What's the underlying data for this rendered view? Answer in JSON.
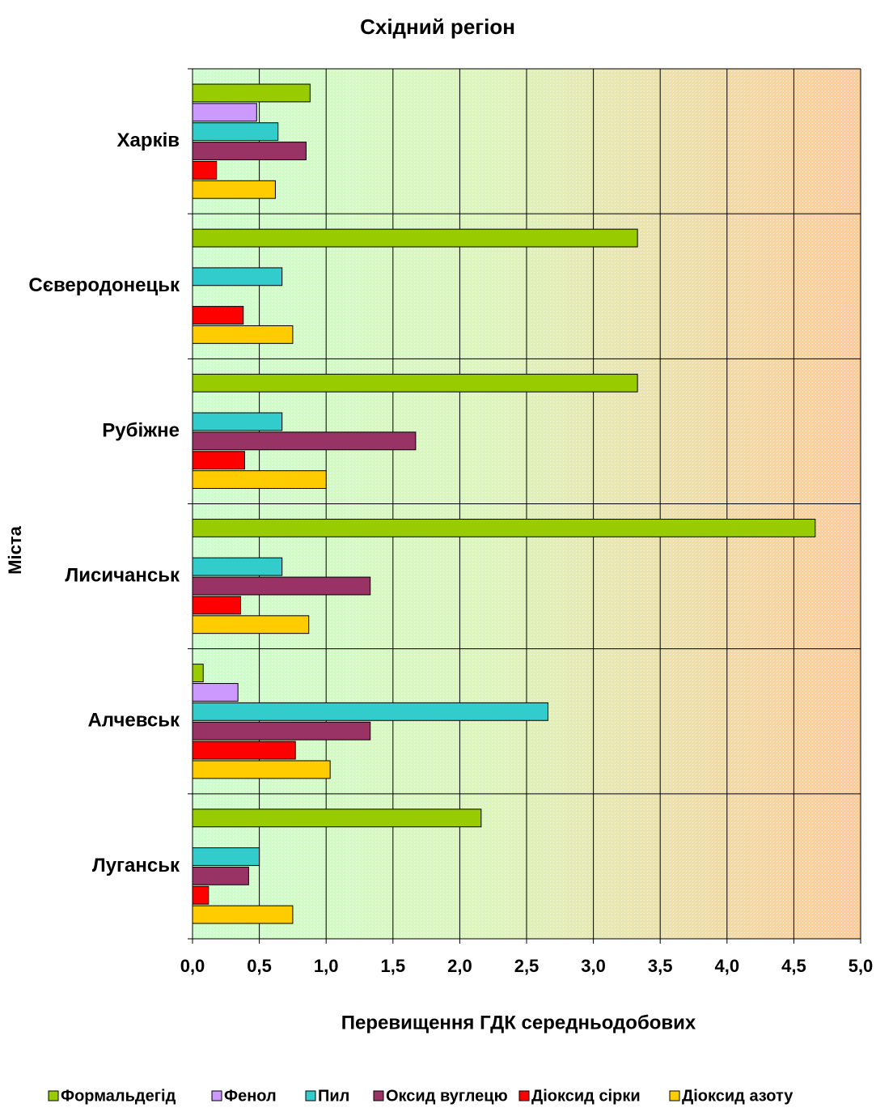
{
  "chart_data": {
    "type": "hbar",
    "title": "Східний регіон",
    "x_label": "Перевищення ГДК середньодобових",
    "y_label": "Міста",
    "categories": [
      "Харків",
      "Сєверодонецьк",
      "Рубіжне",
      "Лисичанськ",
      "Алчевськ",
      "Луганськ"
    ],
    "series": [
      {
        "name": "Формальдегід",
        "color": "#99cc00",
        "values": [
          0.88,
          3.33,
          3.33,
          4.66,
          0.08,
          2.16
        ]
      },
      {
        "name": "Фенол",
        "color": "#cc99ff",
        "values": [
          0.48,
          null,
          null,
          null,
          0.34,
          null
        ]
      },
      {
        "name": "Пил",
        "color": "#33cccc",
        "values": [
          0.64,
          0.67,
          0.67,
          0.67,
          2.66,
          0.5
        ]
      },
      {
        "name": "Оксид вуглецю",
        "color": "#993366",
        "values": [
          0.85,
          null,
          1.67,
          1.33,
          1.33,
          0.42
        ]
      },
      {
        "name": "Діоксид сірки",
        "color": "#ff0000",
        "values": [
          0.18,
          0.38,
          0.39,
          0.36,
          0.77,
          0.12
        ]
      },
      {
        "name": "Діоксид азоту",
        "color": "#ffcc00",
        "values": [
          0.62,
          0.75,
          1.0,
          0.87,
          1.03,
          0.75
        ]
      }
    ],
    "xlim": [
      0,
      5
    ],
    "xticks": [
      {
        "value": 0,
        "label": "0,0"
      },
      {
        "value": 0.5,
        "label": "0,5"
      },
      {
        "value": 1,
        "label": "1,0"
      },
      {
        "value": 1.5,
        "label": "1,5"
      },
      {
        "value": 2,
        "label": "2,0"
      },
      {
        "value": 2.5,
        "label": "2,5"
      },
      {
        "value": 3,
        "label": "3,0"
      },
      {
        "value": 3.5,
        "label": "3,5"
      },
      {
        "value": 4,
        "label": "4,0"
      },
      {
        "value": 4.5,
        "label": "4,5"
      },
      {
        "value": 5,
        "label": "5,0"
      }
    ],
    "grid": true,
    "legend": "bottom"
  }
}
